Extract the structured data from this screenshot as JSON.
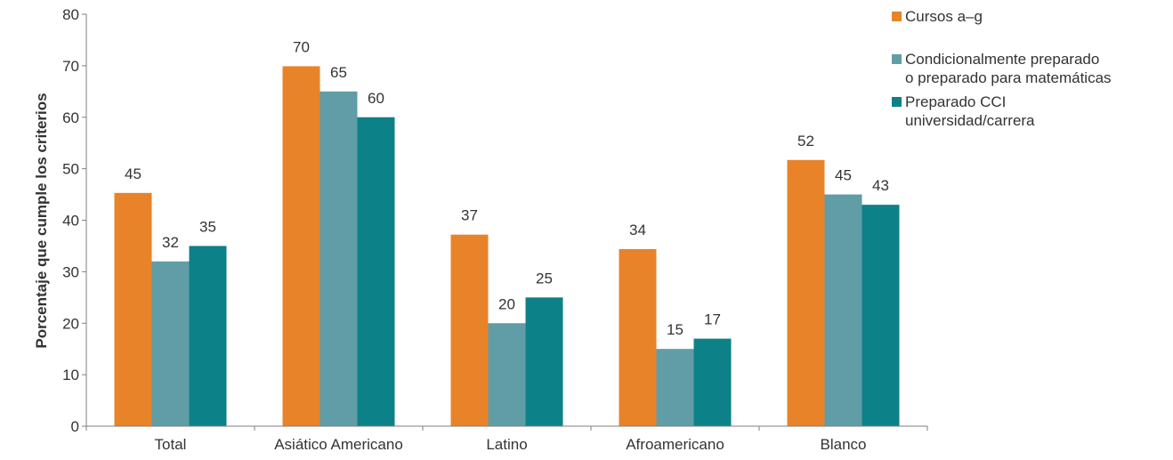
{
  "chart_data": {
    "type": "bar",
    "title": "",
    "xlabel": "",
    "ylabel": "Porcentaje que cumple los criterios",
    "ylim": [
      0,
      80
    ],
    "yticks": [
      0,
      10,
      20,
      30,
      40,
      50,
      60,
      70,
      80
    ],
    "grid": false,
    "legend_position": "top-right",
    "categories": [
      "Total",
      "Asiático Americano",
      "Latino",
      "Afroamericano",
      "Blanco"
    ],
    "series": [
      {
        "name": "Cursos a–g",
        "color": "#e8832a",
        "values": [
          45.3,
          69.9,
          37.2,
          34.4,
          51.7
        ],
        "labels": [
          "45",
          "70",
          "37",
          "34",
          "52"
        ]
      },
      {
        "name": "Condicionalmente preparado\no preparado para matemáticas",
        "color": "#609da6",
        "values": [
          32,
          65,
          20,
          15,
          45
        ],
        "labels": [
          "32",
          "65",
          "20",
          "15",
          "45"
        ]
      },
      {
        "name": "Preparado CCI\nuniversidad/carrera",
        "color": "#0d8188",
        "values": [
          35,
          60,
          25,
          17,
          43
        ],
        "labels": [
          "35",
          "60",
          "25",
          "17",
          "43"
        ]
      }
    ]
  }
}
